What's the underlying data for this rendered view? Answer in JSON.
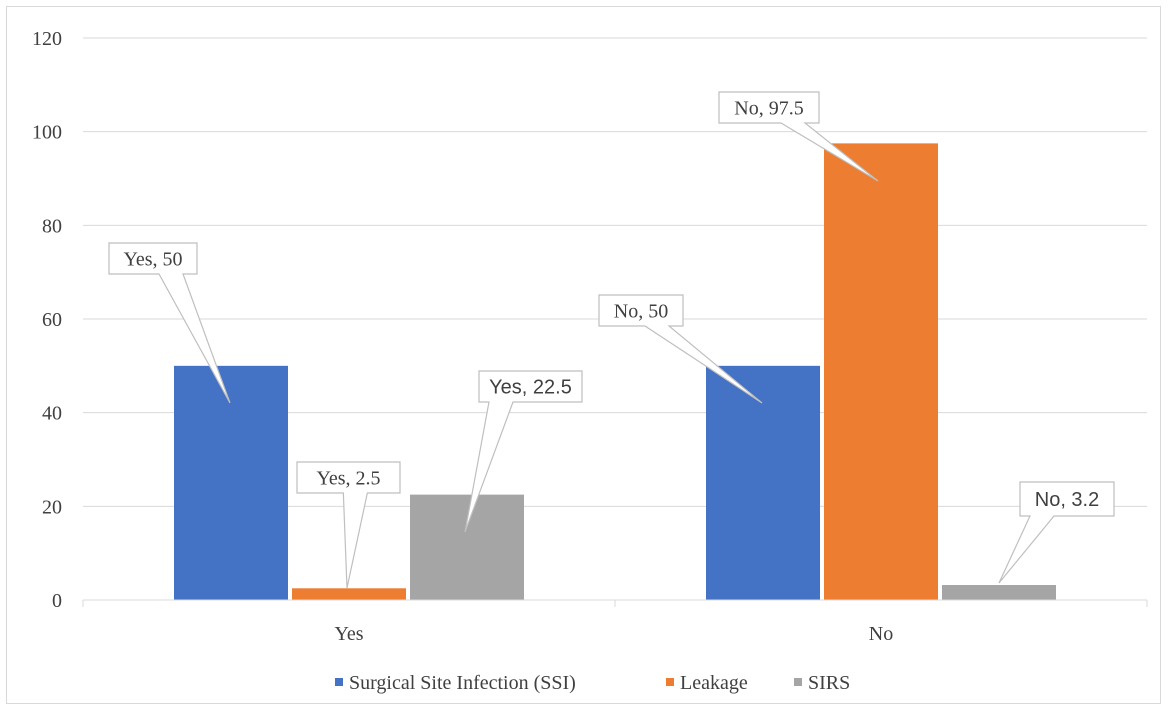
{
  "chart_data": {
    "type": "bar",
    "categories": [
      "Yes",
      "No"
    ],
    "series": [
      {
        "name": "Surgical Site Infection (SSI)",
        "color": "#4472c4",
        "values": [
          50,
          50
        ]
      },
      {
        "name": "Leakage",
        "color": "#ed7d31",
        "values": [
          2.5,
          97.5
        ]
      },
      {
        "name": "SIRS",
        "color": "#a5a5a5",
        "values": [
          22.5,
          3.2
        ]
      }
    ],
    "data_labels": [
      [
        "Yes, 50",
        "No, 50"
      ],
      [
        "Yes, 2.5",
        "No, 97.5"
      ],
      [
        "Yes, 22.5",
        "No, 3.2"
      ]
    ],
    "ylim": [
      0,
      120
    ],
    "yticks": [
      0,
      20,
      40,
      60,
      80,
      100,
      120
    ],
    "title": "",
    "xlabel": "",
    "ylabel": "",
    "grid": true,
    "legend_position": "bottom"
  }
}
